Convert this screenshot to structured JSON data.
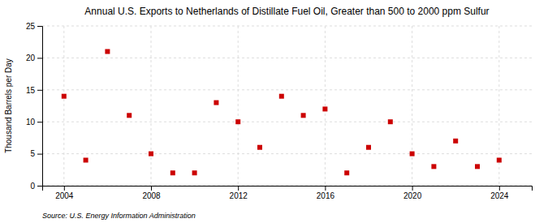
{
  "chart_data": {
    "type": "scatter",
    "title": "Annual U.S. Exports to Netherlands of Distillate Fuel Oil, Greater than 500 to 2000 ppm Sulfur",
    "ylabel": "Thousand Barrels per Day",
    "annotations": [
      "Source: U.S. Energy Information Administration"
    ],
    "x": [
      2004,
      2005,
      2006,
      2007,
      2008,
      2009,
      2010,
      2011,
      2012,
      2013,
      2014,
      2015,
      2016,
      2017,
      2018,
      2019,
      2020,
      2021,
      2022,
      2023,
      2024
    ],
    "values": [
      14,
      4,
      21,
      11,
      5,
      2,
      2,
      13,
      10,
      6,
      14,
      11,
      12,
      2,
      6,
      10,
      5,
      3,
      7,
      3,
      4
    ],
    "color": "#cc0000",
    "marker": "square",
    "xlim": [
      2003.0,
      2025.5
    ],
    "ylim": [
      0,
      25
    ],
    "xticks": [
      2004,
      2008,
      2012,
      2016,
      2020,
      2024
    ],
    "yticks": [
      0,
      5,
      10,
      15,
      20,
      25
    ],
    "grid": true
  }
}
